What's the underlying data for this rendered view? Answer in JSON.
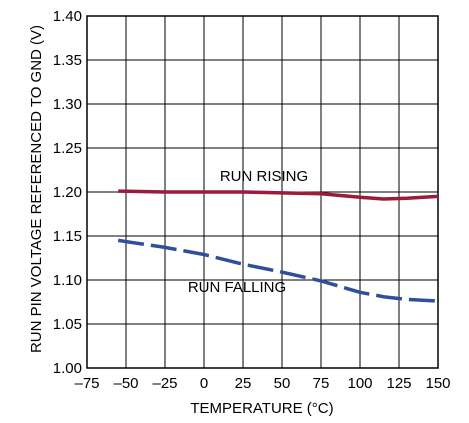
{
  "chart_data": {
    "type": "line",
    "title": "",
    "xlabel": "TEMPERATURE (°C)",
    "ylabel": "RUN PIN VOLTAGE REFERENCED TO GND (V)",
    "xlim": [
      -75,
      150
    ],
    "ylim": [
      1.0,
      1.4
    ],
    "x_ticks": [
      -75,
      -50,
      -25,
      0,
      25,
      50,
      75,
      100,
      125,
      150
    ],
    "x_tick_labels": [
      "–75",
      "–50",
      "–25",
      "0",
      "25",
      "50",
      "75",
      "100",
      "125",
      "150"
    ],
    "y_ticks": [
      1.0,
      1.05,
      1.1,
      1.15,
      1.2,
      1.25,
      1.3,
      1.35,
      1.4
    ],
    "y_tick_labels": [
      "1.00",
      "1.05",
      "1.10",
      "1.15",
      "1.20",
      "1.25",
      "1.30",
      "1.35",
      "1.40"
    ],
    "grid": true,
    "series": [
      {
        "name": "RUN RISING",
        "color": "#9b1b3a",
        "style": "solid",
        "x": [
          -55,
          -25,
          0,
          25,
          50,
          75,
          100,
          115,
          130,
          150
        ],
        "y": [
          1.201,
          1.2,
          1.2,
          1.2,
          1.199,
          1.198,
          1.194,
          1.192,
          1.193,
          1.195
        ]
      },
      {
        "name": "RUN FALLING",
        "color": "#2f4e9b",
        "style": "dashed",
        "x": [
          -55,
          -25,
          0,
          25,
          50,
          75,
          100,
          115,
          130,
          150
        ],
        "y": [
          1.145,
          1.137,
          1.129,
          1.118,
          1.109,
          1.099,
          1.086,
          1.081,
          1.078,
          1.076
        ]
      }
    ]
  }
}
